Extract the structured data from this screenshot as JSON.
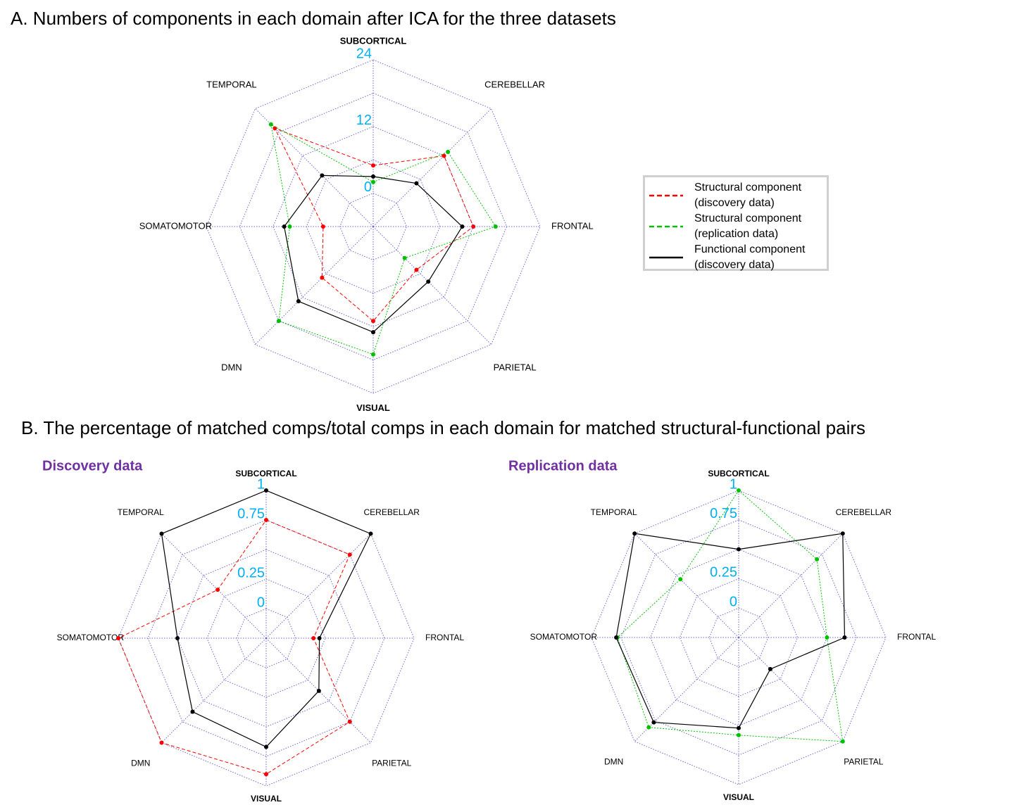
{
  "chart_data": [
    {
      "type": "radar",
      "title": "A. Numbers of components in each domain after ICA for the three datasets",
      "categories": [
        "SUBCORTICAL",
        "CEREBELLAR",
        "FRONTAL",
        "PARIETAL",
        "VISUAL",
        "DMN",
        "SOMATOMOTOR",
        "TEMPORAL"
      ],
      "ylim": [
        0,
        24
      ],
      "yticks": [
        0,
        12,
        24
      ],
      "legend": "right",
      "series": [
        {
          "name": "Structural component (discovery data)",
          "color": "#ff0000",
          "dash": "dashed",
          "values": [
            5,
            12,
            12,
            5,
            11,
            7,
            3,
            19
          ]
        },
        {
          "name": "Structural component (replication data)",
          "color": "#00c000",
          "dash": "dotted",
          "values": [
            2,
            13,
            16,
            2,
            17,
            18,
            9,
            20
          ]
        },
        {
          "name": "Functional component (discovery data)",
          "color": "#000000",
          "dash": "solid",
          "values": [
            3,
            5,
            10,
            8,
            13,
            13,
            10,
            7
          ]
        }
      ]
    },
    {
      "type": "radar",
      "title": "B. The percentage of matched comps/total comps in each domain for matched structural-functional pairs",
      "subtitle": "Discovery data",
      "categories": [
        "SUBCORTICAL",
        "CEREBELLAR",
        "FRONTAL",
        "PARIETAL",
        "VISUAL",
        "DMN",
        "SOMATOMOTOR",
        "TEMPORAL"
      ],
      "ylim": [
        0,
        1
      ],
      "yticks": [
        0,
        0.25,
        0.75,
        1
      ],
      "series": [
        {
          "color": "#ff0000",
          "dash": "dashed",
          "values": [
            0.75,
            0.75,
            0.15,
            0.75,
            0.9,
            1,
            1,
            0.33
          ]
        },
        {
          "color": "#000000",
          "dash": "solid",
          "values": [
            1,
            1,
            0.2,
            0.38,
            0.67,
            0.63,
            0.5,
            1
          ]
        }
      ]
    },
    {
      "type": "radar",
      "subtitle": "Replication data",
      "categories": [
        "SUBCORTICAL",
        "CEREBELLAR",
        "FRONTAL",
        "PARIETAL",
        "VISUAL",
        "DMN",
        "SOMATOMOTOR",
        "TEMPORAL"
      ],
      "ylim": [
        0,
        1
      ],
      "yticks": [
        0,
        0.25,
        0.75,
        1
      ],
      "series": [
        {
          "color": "#00c000",
          "dash": "dotted",
          "values": [
            1,
            0.69,
            0.5,
            1,
            0.58,
            0.83,
            0.78,
            0.45
          ]
        },
        {
          "color": "#000000",
          "dash": "solid",
          "values": [
            0.5,
            1,
            0.65,
            0.13,
            0.52,
            0.77,
            0.79,
            1
          ]
        }
      ]
    }
  ]
}
